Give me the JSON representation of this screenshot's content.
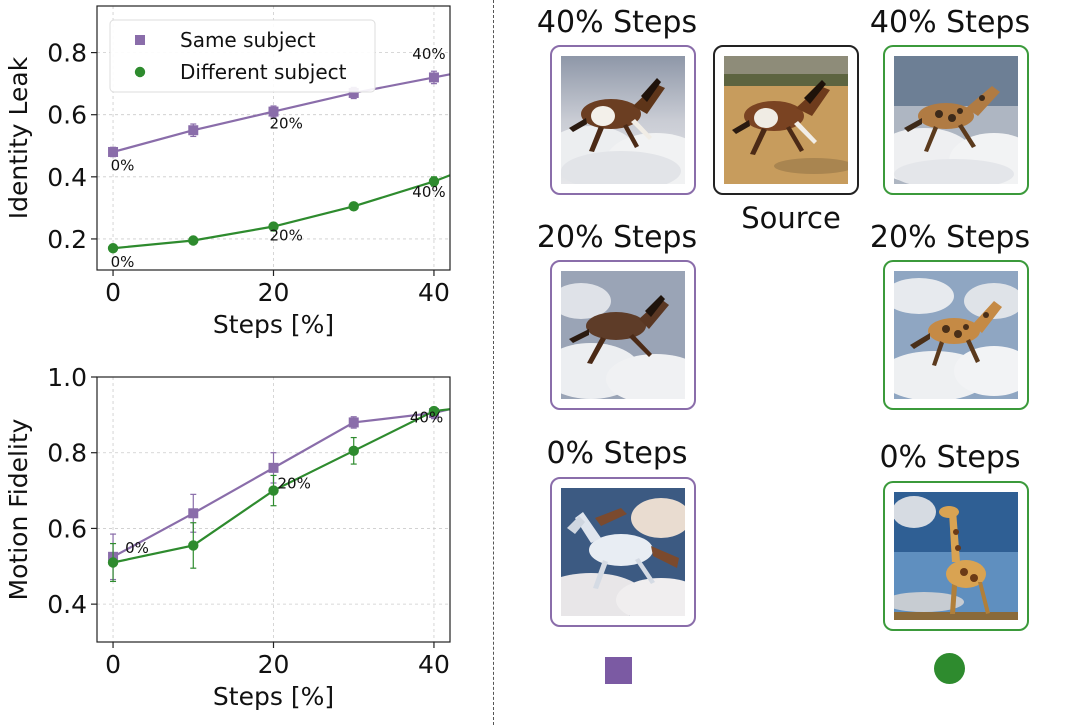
{
  "chart_data": [
    {
      "type": "line",
      "xlabel": "Steps [%]",
      "ylabel": "Identity Leak",
      "xlim": [
        -2,
        42
      ],
      "ylim": [
        0.1,
        0.95
      ],
      "xticks": [
        0,
        20,
        40
      ],
      "yticks": [
        0.2,
        0.4,
        0.6,
        0.8
      ],
      "ytick_labels": [
        "0.2",
        "0.4",
        "0.6",
        "0.8"
      ],
      "xtick_labels": [
        "0",
        "20",
        "40"
      ],
      "grid": true,
      "legend_position": "top-left",
      "series": [
        {
          "name": "Same subject",
          "marker": "square",
          "color": "#8A6DAA",
          "x": [
            0,
            10,
            20,
            30,
            40
          ],
          "y": [
            0.48,
            0.55,
            0.61,
            0.67,
            0.72
          ],
          "err": [
            0.015,
            0.02,
            0.018,
            0.018,
            0.02
          ],
          "trail_to": [
            42,
            0.73
          ]
        },
        {
          "name": "Different subject",
          "marker": "circle",
          "color": "#2E8B2E",
          "x": [
            0,
            10,
            20,
            30,
            40
          ],
          "y": [
            0.17,
            0.195,
            0.24,
            0.305,
            0.385
          ],
          "err": [
            0.005,
            0.005,
            0.006,
            0.008,
            0.015
          ],
          "trail_to": [
            42,
            0.405
          ]
        }
      ],
      "annotations": [
        {
          "text": "0%",
          "x": -0.3,
          "y": 0.42
        },
        {
          "text": "20%",
          "x": 19.5,
          "y": 0.555
        },
        {
          "text": "40%",
          "x": 37.3,
          "y": 0.78
        },
        {
          "text": "0%",
          "x": -0.3,
          "y": 0.11
        },
        {
          "text": "20%",
          "x": 19.5,
          "y": 0.195
        },
        {
          "text": "40%",
          "x": 37.3,
          "y": 0.335
        }
      ]
    },
    {
      "type": "line",
      "xlabel": "Steps [%]",
      "ylabel": "Motion Fidelity",
      "xlim": [
        -2,
        42
      ],
      "ylim": [
        0.3,
        1.0
      ],
      "xticks": [
        0,
        20,
        40
      ],
      "yticks": [
        0.4,
        0.6,
        0.8,
        1.0
      ],
      "ytick_labels": [
        "0.4",
        "0.6",
        "0.8",
        "1.0"
      ],
      "xtick_labels": [
        "0",
        "20",
        "40"
      ],
      "grid": true,
      "series": [
        {
          "name": "Same subject",
          "marker": "square",
          "color": "#8A6DAA",
          "x": [
            0,
            10,
            20,
            30,
            40
          ],
          "y": [
            0.525,
            0.64,
            0.76,
            0.88,
            0.905
          ],
          "err": [
            0.06,
            0.05,
            0.04,
            0.015,
            0.015
          ],
          "trail_to": [
            42,
            0.915
          ]
        },
        {
          "name": "Different subject",
          "marker": "circle",
          "color": "#2E8B2E",
          "x": [
            0,
            10,
            20,
            30,
            40
          ],
          "y": [
            0.51,
            0.555,
            0.7,
            0.805,
            0.91
          ],
          "err": [
            0.05,
            0.06,
            0.04,
            0.035,
            0.01
          ],
          "trail_to": [
            42,
            0.915
          ]
        }
      ],
      "annotations": [
        {
          "text": "0%",
          "x": 1.5,
          "y": 0.535
        },
        {
          "text": "20%",
          "x": 20.5,
          "y": 0.705
        },
        {
          "text": "40%",
          "x": 37.0,
          "y": 0.88
        }
      ]
    }
  ],
  "right_panel": {
    "top_left_label": "40% Steps",
    "top_right_label": "40% Steps",
    "source_label": "Source",
    "mid_left_label": "20% Steps",
    "mid_right_label": "20% Steps",
    "bottom_left_label": "0% Steps",
    "bottom_right_label": "0% Steps",
    "purple_color": "#8A6DAA",
    "green_color": "#3B9A3B"
  }
}
